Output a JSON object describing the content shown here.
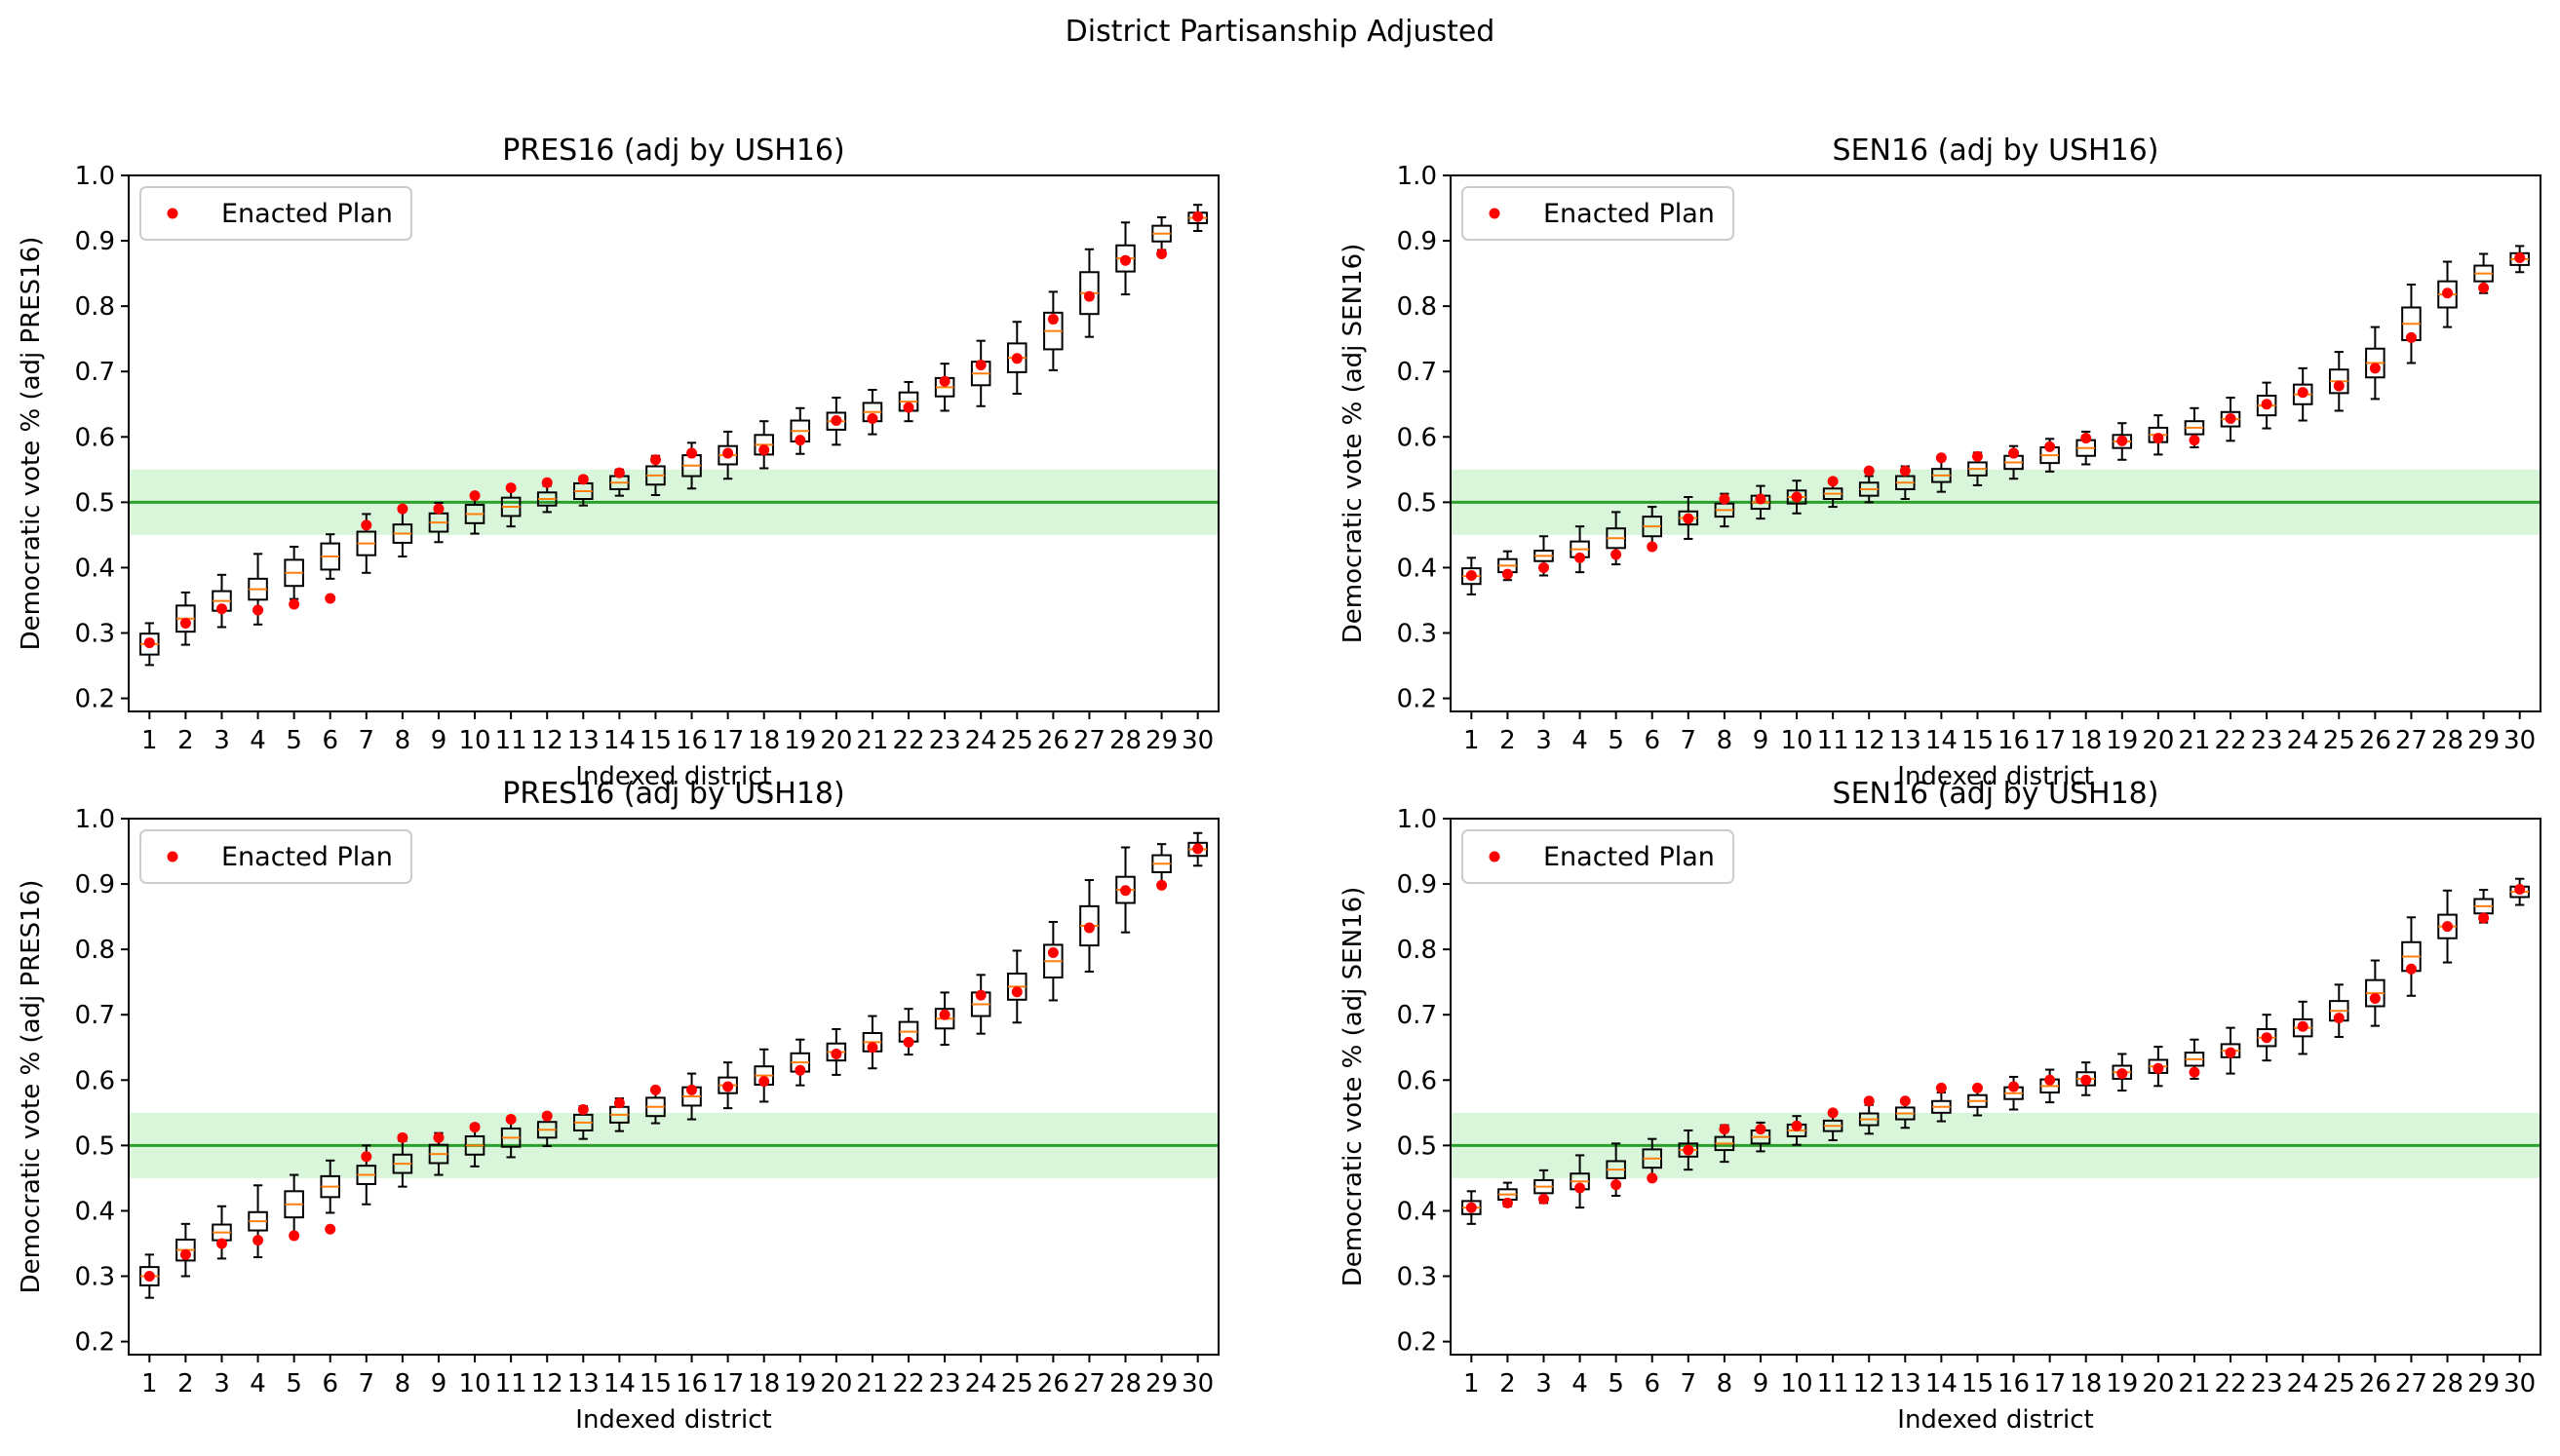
{
  "figure": {
    "title": "District Partisanship Adjusted"
  },
  "colors": {
    "box": "#000000",
    "median": "#ff7f0e",
    "enacted": "#ff0000",
    "line": "#2ca02c",
    "band": "#d3f5d3"
  },
  "chart_data": [
    {
      "type": "box",
      "title": "PRES16 (adj by USH16)",
      "xlabel": "Indexed district",
      "ylabel": "Democratic vote % (adj PRES16)",
      "ylim": [
        0.18,
        1.0
      ],
      "yticks": [
        "0.2",
        "0.3",
        "0.4",
        "0.5",
        "0.6",
        "0.7",
        "0.8",
        "0.9",
        "1.0"
      ],
      "categories": [
        "1",
        "2",
        "3",
        "4",
        "5",
        "6",
        "7",
        "8",
        "9",
        "10",
        "11",
        "12",
        "13",
        "14",
        "15",
        "16",
        "17",
        "18",
        "19",
        "20",
        "21",
        "22",
        "23",
        "24",
        "25",
        "26",
        "27",
        "28",
        "29",
        "30"
      ],
      "legend": {
        "label": "Enacted Plan",
        "loc": "upper left"
      },
      "reference_line": 0.5,
      "band": [
        0.45,
        0.55
      ],
      "medians": [
        0.283,
        0.322,
        0.349,
        0.367,
        0.392,
        0.417,
        0.437,
        0.452,
        0.469,
        0.482,
        0.493,
        0.505,
        0.517,
        0.53,
        0.541,
        0.556,
        0.572,
        0.588,
        0.609,
        0.624,
        0.638,
        0.654,
        0.676,
        0.697,
        0.721,
        0.762,
        0.82,
        0.873,
        0.911,
        0.935
      ],
      "enacted": [
        0.285,
        0.315,
        0.337,
        0.335,
        0.344,
        0.353,
        0.465,
        0.49,
        0.49,
        0.51,
        0.522,
        0.53,
        0.535,
        0.545,
        0.565,
        0.575,
        0.575,
        0.58,
        0.595,
        0.625,
        0.628,
        0.645,
        0.685,
        0.71,
        0.72,
        0.78,
        0.815,
        0.87,
        0.88,
        0.937
      ],
      "box_halfwidths": [
        0.016,
        0.02,
        0.015,
        0.016,
        0.02,
        0.02,
        0.018,
        0.014,
        0.014,
        0.014,
        0.014,
        0.01,
        0.012,
        0.01,
        0.014,
        0.016,
        0.014,
        0.015,
        0.016,
        0.013,
        0.014,
        0.014,
        0.014,
        0.018,
        0.022,
        0.028,
        0.032,
        0.02,
        0.012,
        0.008
      ],
      "whisker_halfwidths": [
        0.032,
        0.04,
        0.04,
        0.054,
        0.04,
        0.034,
        0.045,
        0.035,
        0.03,
        0.03,
        0.03,
        0.02,
        0.022,
        0.02,
        0.03,
        0.035,
        0.036,
        0.036,
        0.035,
        0.036,
        0.034,
        0.03,
        0.036,
        0.05,
        0.055,
        0.06,
        0.067,
        0.055,
        0.025,
        0.02
      ]
    },
    {
      "type": "box",
      "title": "SEN16 (adj by USH16)",
      "xlabel": "Indexed district",
      "ylabel": "Democratic vote % (adj SEN16)",
      "ylim": [
        0.18,
        1.0
      ],
      "yticks": [
        "0.2",
        "0.3",
        "0.4",
        "0.5",
        "0.6",
        "0.7",
        "0.8",
        "0.9",
        "1.0"
      ],
      "categories": [
        "1",
        "2",
        "3",
        "4",
        "5",
        "6",
        "7",
        "8",
        "9",
        "10",
        "11",
        "12",
        "13",
        "14",
        "15",
        "16",
        "17",
        "18",
        "19",
        "20",
        "21",
        "22",
        "23",
        "24",
        "25",
        "26",
        "27",
        "28",
        "29",
        "30"
      ],
      "legend": {
        "label": "Enacted Plan",
        "loc": "upper left"
      },
      "reference_line": 0.5,
      "band": [
        0.45,
        0.55
      ],
      "medians": [
        0.387,
        0.403,
        0.418,
        0.428,
        0.445,
        0.463,
        0.476,
        0.488,
        0.5,
        0.508,
        0.513,
        0.52,
        0.53,
        0.541,
        0.551,
        0.561,
        0.572,
        0.583,
        0.593,
        0.603,
        0.614,
        0.627,
        0.648,
        0.665,
        0.685,
        0.713,
        0.773,
        0.818,
        0.85,
        0.872
      ],
      "enacted": [
        0.388,
        0.39,
        0.4,
        0.415,
        0.42,
        0.432,
        0.475,
        0.505,
        0.505,
        0.508,
        0.532,
        0.548,
        0.548,
        0.568,
        0.57,
        0.575,
        0.585,
        0.598,
        0.594,
        0.598,
        0.595,
        0.628,
        0.65,
        0.668,
        0.678,
        0.705,
        0.752,
        0.82,
        0.828,
        0.874
      ],
      "box_halfwidths": [
        0.012,
        0.01,
        0.008,
        0.012,
        0.015,
        0.015,
        0.01,
        0.01,
        0.01,
        0.01,
        0.008,
        0.01,
        0.01,
        0.01,
        0.01,
        0.01,
        0.012,
        0.012,
        0.01,
        0.011,
        0.01,
        0.011,
        0.015,
        0.015,
        0.018,
        0.022,
        0.025,
        0.02,
        0.012,
        0.009
      ],
      "whisker_halfwidths": [
        0.028,
        0.022,
        0.03,
        0.035,
        0.04,
        0.03,
        0.032,
        0.025,
        0.025,
        0.025,
        0.02,
        0.02,
        0.025,
        0.025,
        0.025,
        0.025,
        0.025,
        0.025,
        0.028,
        0.03,
        0.03,
        0.033,
        0.035,
        0.04,
        0.045,
        0.055,
        0.06,
        0.05,
        0.03,
        0.02
      ]
    },
    {
      "type": "box",
      "title": "PRES16 (adj by USH18)",
      "xlabel": "Indexed district",
      "ylabel": "Democratic vote % (adj PRES16)",
      "ylim": [
        0.18,
        1.0
      ],
      "yticks": [
        "0.2",
        "0.3",
        "0.4",
        "0.5",
        "0.6",
        "0.7",
        "0.8",
        "0.9",
        "1.0"
      ],
      "categories": [
        "1",
        "2",
        "3",
        "4",
        "5",
        "6",
        "7",
        "8",
        "9",
        "10",
        "11",
        "12",
        "13",
        "14",
        "15",
        "16",
        "17",
        "18",
        "19",
        "20",
        "21",
        "22",
        "23",
        "24",
        "25",
        "26",
        "27",
        "28",
        "29",
        "30"
      ],
      "legend": {
        "label": "Enacted Plan",
        "loc": "upper left"
      },
      "reference_line": 0.5,
      "band": [
        0.45,
        0.55
      ],
      "medians": [
        0.3,
        0.34,
        0.367,
        0.384,
        0.41,
        0.437,
        0.455,
        0.472,
        0.487,
        0.5,
        0.512,
        0.524,
        0.535,
        0.547,
        0.559,
        0.575,
        0.592,
        0.607,
        0.627,
        0.643,
        0.658,
        0.674,
        0.694,
        0.716,
        0.743,
        0.782,
        0.836,
        0.891,
        0.931,
        0.953
      ],
      "enacted": [
        0.3,
        0.333,
        0.35,
        0.355,
        0.362,
        0.372,
        0.483,
        0.512,
        0.512,
        0.528,
        0.54,
        0.545,
        0.555,
        0.565,
        0.585,
        0.585,
        0.59,
        0.598,
        0.615,
        0.64,
        0.65,
        0.658,
        0.7,
        0.73,
        0.735,
        0.795,
        0.833,
        0.89,
        0.898,
        0.954
      ],
      "box_halfwidths": [
        0.014,
        0.016,
        0.012,
        0.014,
        0.02,
        0.016,
        0.014,
        0.014,
        0.014,
        0.014,
        0.014,
        0.012,
        0.012,
        0.012,
        0.014,
        0.014,
        0.012,
        0.014,
        0.014,
        0.013,
        0.014,
        0.015,
        0.015,
        0.018,
        0.02,
        0.025,
        0.03,
        0.02,
        0.013,
        0.01
      ],
      "whisker_halfwidths": [
        0.033,
        0.04,
        0.04,
        0.055,
        0.045,
        0.04,
        0.045,
        0.035,
        0.032,
        0.032,
        0.03,
        0.025,
        0.025,
        0.025,
        0.025,
        0.035,
        0.035,
        0.04,
        0.035,
        0.035,
        0.04,
        0.035,
        0.04,
        0.045,
        0.055,
        0.06,
        0.07,
        0.065,
        0.03,
        0.025
      ]
    },
    {
      "type": "box",
      "title": "SEN16 (adj by USH18)",
      "xlabel": "Indexed district",
      "ylabel": "Democratic vote % (adj SEN16)",
      "ylim": [
        0.18,
        1.0
      ],
      "yticks": [
        "0.2",
        "0.3",
        "0.4",
        "0.5",
        "0.6",
        "0.7",
        "0.8",
        "0.9",
        "1.0"
      ],
      "categories": [
        "1",
        "2",
        "3",
        "4",
        "5",
        "6",
        "7",
        "8",
        "9",
        "10",
        "11",
        "12",
        "13",
        "14",
        "15",
        "16",
        "17",
        "18",
        "19",
        "20",
        "21",
        "22",
        "23",
        "24",
        "25",
        "26",
        "27",
        "28",
        "29",
        "30"
      ],
      "legend": {
        "label": "Enacted Plan",
        "loc": "upper left"
      },
      "reference_line": 0.5,
      "band": [
        0.45,
        0.55
      ],
      "medians": [
        0.405,
        0.425,
        0.437,
        0.445,
        0.463,
        0.48,
        0.493,
        0.503,
        0.513,
        0.523,
        0.53,
        0.54,
        0.549,
        0.559,
        0.568,
        0.58,
        0.591,
        0.602,
        0.612,
        0.621,
        0.632,
        0.645,
        0.665,
        0.68,
        0.706,
        0.733,
        0.789,
        0.835,
        0.866,
        0.888
      ],
      "enacted": [
        0.405,
        0.412,
        0.418,
        0.435,
        0.44,
        0.45,
        0.493,
        0.525,
        0.525,
        0.53,
        0.55,
        0.568,
        0.568,
        0.588,
        0.588,
        0.59,
        0.6,
        0.6,
        0.61,
        0.618,
        0.612,
        0.642,
        0.665,
        0.682,
        0.695,
        0.725,
        0.77,
        0.835,
        0.848,
        0.892
      ],
      "box_halfwidths": [
        0.01,
        0.008,
        0.01,
        0.012,
        0.013,
        0.014,
        0.01,
        0.01,
        0.01,
        0.009,
        0.008,
        0.009,
        0.009,
        0.009,
        0.009,
        0.009,
        0.01,
        0.01,
        0.01,
        0.01,
        0.01,
        0.01,
        0.013,
        0.013,
        0.015,
        0.02,
        0.022,
        0.018,
        0.011,
        0.008
      ],
      "whisker_halfwidths": [
        0.025,
        0.018,
        0.025,
        0.04,
        0.04,
        0.03,
        0.03,
        0.028,
        0.022,
        0.022,
        0.022,
        0.022,
        0.022,
        0.022,
        0.022,
        0.025,
        0.025,
        0.025,
        0.028,
        0.03,
        0.03,
        0.035,
        0.035,
        0.04,
        0.04,
        0.05,
        0.06,
        0.055,
        0.025,
        0.02
      ]
    }
  ]
}
